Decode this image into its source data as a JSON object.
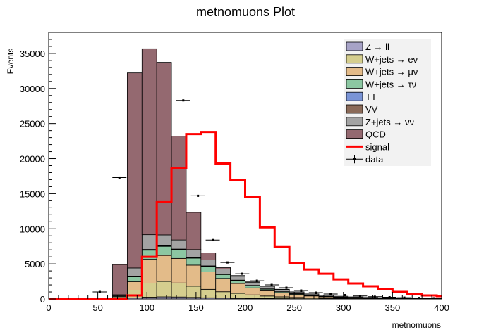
{
  "chart_data": {
    "type": "bar",
    "title": "metnomuons Plot",
    "xlabel": "metnomuons",
    "ylabel": "Events",
    "xlim": [
      0,
      400
    ],
    "ylim": [
      0,
      38000
    ],
    "x_ticks": [
      0,
      50,
      100,
      150,
      200,
      250,
      300,
      350,
      400
    ],
    "y_ticks": [
      0,
      5000,
      10000,
      15000,
      20000,
      25000,
      30000,
      35000
    ],
    "bin_edges": [
      0,
      15,
      30,
      45,
      60,
      65,
      80,
      95,
      110,
      125,
      140,
      155,
      170,
      185,
      200,
      215,
      230,
      245,
      260,
      275,
      290,
      305,
      320,
      335,
      350,
      365,
      380,
      395,
      400
    ],
    "stacked_series": [
      {
        "name": "Z → ll",
        "color": "#a7a3c7",
        "values": [
          0,
          0,
          0,
          0,
          0,
          80,
          150,
          250,
          300,
          280,
          220,
          170,
          130,
          100,
          80,
          60,
          45,
          35,
          25,
          20,
          15,
          10,
          8,
          6,
          5,
          4,
          3,
          2
        ]
      },
      {
        "name": "W+jets → eν",
        "color": "#d5ce8e",
        "values": [
          0,
          0,
          0,
          0,
          0,
          100,
          1100,
          2000,
          2200,
          2000,
          1600,
          1200,
          900,
          700,
          500,
          360,
          260,
          180,
          120,
          90,
          60,
          45,
          35,
          25,
          20,
          15,
          10,
          8
        ]
      },
      {
        "name": "W+jets → μν",
        "color": "#e3bb89",
        "values": [
          0,
          0,
          0,
          0,
          0,
          150,
          1200,
          3400,
          3700,
          3500,
          3000,
          2500,
          1900,
          1400,
          1000,
          750,
          540,
          400,
          280,
          200,
          140,
          100,
          75,
          55,
          40,
          30,
          22,
          15
        ]
      },
      {
        "name": "W+jets → τν",
        "color": "#8cc7a2",
        "values": [
          0,
          0,
          0,
          0,
          0,
          100,
          700,
          1300,
          1300,
          1200,
          1000,
          750,
          550,
          420,
          300,
          220,
          160,
          110,
          80,
          60,
          45,
          35,
          25,
          18,
          12,
          10,
          8,
          5
        ]
      },
      {
        "name": "TT",
        "color": "#7a94d6",
        "values": [
          0,
          0,
          0,
          0,
          0,
          10,
          40,
          60,
          70,
          70,
          60,
          50,
          40,
          30,
          25,
          20,
          15,
          12,
          10,
          8,
          6,
          5,
          4,
          3,
          2,
          2,
          2,
          1
        ]
      },
      {
        "name": "VV",
        "color": "#8a6a58",
        "values": [
          0,
          0,
          0,
          0,
          0,
          10,
          30,
          50,
          60,
          60,
          55,
          45,
          40,
          35,
          30,
          25,
          20,
          18,
          15,
          12,
          10,
          8,
          6,
          5,
          4,
          3,
          3,
          2
        ]
      },
      {
        "name": "Z+jets → νν",
        "color": "#a3a3a3",
        "values": [
          0,
          0,
          0,
          0,
          0,
          150,
          1200,
          2100,
          1500,
          1300,
          1100,
          850,
          700,
          550,
          450,
          380,
          320,
          240,
          180,
          140,
          110,
          90,
          70,
          55,
          45,
          35,
          30,
          25
        ]
      },
      {
        "name": "QCD",
        "color": "#946970",
        "values": [
          0,
          0,
          0,
          0,
          0,
          4300,
          27800,
          26500,
          24600,
          14800,
          5300,
          1000,
          200,
          100,
          50,
          30,
          20,
          10,
          5,
          0,
          0,
          0,
          0,
          0,
          0,
          0,
          0,
          0
        ]
      }
    ],
    "signal": {
      "name": "signal",
      "color": "#ff0000",
      "values": [
        0,
        0,
        0,
        0,
        0,
        0,
        500,
        6000,
        13800,
        18700,
        23500,
        23800,
        19300,
        17000,
        14500,
        10200,
        7400,
        5100,
        4200,
        3600,
        2800,
        2200,
        1800,
        1400,
        1000,
        750,
        500,
        400
      ]
    },
    "data": {
      "name": "data",
      "color": "#000000",
      "points": [
        {
          "x": 52,
          "y": 1000
        },
        {
          "x": 72,
          "y": 17300
        },
        {
          "x": 137,
          "y": 28300
        },
        {
          "x": 152,
          "y": 14700
        },
        {
          "x": 167,
          "y": 8400
        },
        {
          "x": 182,
          "y": 5200
        },
        {
          "x": 197,
          "y": 3600
        },
        {
          "x": 212,
          "y": 2600
        },
        {
          "x": 227,
          "y": 2000
        },
        {
          "x": 242,
          "y": 1600
        },
        {
          "x": 257,
          "y": 1200
        },
        {
          "x": 272,
          "y": 900
        },
        {
          "x": 287,
          "y": 700
        },
        {
          "x": 302,
          "y": 550
        },
        {
          "x": 317,
          "y": 420
        },
        {
          "x": 332,
          "y": 320
        },
        {
          "x": 347,
          "y": 250
        },
        {
          "x": 362,
          "y": 190
        },
        {
          "x": 377,
          "y": 140
        },
        {
          "x": 392,
          "y": 100
        }
      ]
    },
    "legend": {
      "placement": "top-right",
      "entries": [
        "Z → ll",
        "W+jets → eν",
        "W+jets → μν",
        "W+jets → τν",
        "TT",
        "VV",
        "Z+jets → νν",
        "QCD",
        "signal",
        "data"
      ]
    }
  }
}
